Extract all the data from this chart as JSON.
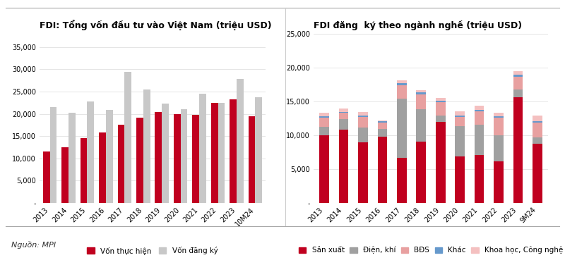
{
  "left_title": "FDI: Tổng vốn đầu tư vào Việt Nam (triệu USD)",
  "right_title": "FDI đăng  ký theo ngành nghề (triệu USD)",
  "source": "Nguồn: MPI",
  "left_years": [
    "2013",
    "2014",
    "2015",
    "2016",
    "2017",
    "2018",
    "2019",
    "2020",
    "2021",
    "2022",
    "2023",
    "10M24"
  ],
  "von_thuc_hien": [
    11500,
    12500,
    14500,
    15800,
    17500,
    19100,
    20400,
    19980,
    19740,
    22400,
    23200,
    19500
  ],
  "von_dang_ky": [
    21500,
    20200,
    22800,
    20900,
    29500,
    25400,
    22300,
    21000,
    24500,
    22400,
    27800,
    23700
  ],
  "right_years": [
    "2013",
    "2014",
    "2015",
    "2016",
    "2017",
    "2018",
    "2019",
    "2020",
    "2021",
    "2022",
    "2023",
    "9M24"
  ],
  "san_xuat": [
    10000,
    10800,
    8900,
    9800,
    6600,
    9000,
    12000,
    6900,
    7100,
    6100,
    15600,
    8700
  ],
  "dien_khi": [
    1200,
    1600,
    2200,
    1100,
    8800,
    4800,
    900,
    4400,
    4400,
    3900,
    1200,
    1000
  ],
  "bds": [
    1400,
    900,
    1600,
    1000,
    2000,
    2200,
    2000,
    1400,
    2000,
    2600,
    1800,
    2200
  ],
  "khac": [
    200,
    150,
    200,
    200,
    300,
    300,
    200,
    200,
    250,
    200,
    300,
    200
  ],
  "khoa_hoc": [
    550,
    550,
    550,
    100,
    400,
    400,
    450,
    650,
    650,
    550,
    550,
    800
  ],
  "left_color_red": "#c0001f",
  "left_color_gray": "#c8c8c8",
  "right_color_san_xuat": "#c0001f",
  "right_color_dien_khi": "#a0a0a0",
  "right_color_bds": "#e8a0a0",
  "right_color_khac": "#6699cc",
  "right_color_khoa_hoc": "#f4c0c0",
  "left_ylim": [
    0,
    38000
  ],
  "right_ylim": [
    0,
    25000
  ],
  "left_yticks": [
    0,
    5000,
    10000,
    15000,
    20000,
    25000,
    30000,
    35000
  ],
  "right_yticks": [
    0,
    5000,
    10000,
    15000,
    20000,
    25000
  ],
  "legend_left": [
    "Vốn thực hiện",
    "Vốn đăng ký"
  ],
  "legend_right": [
    "Sản xuất",
    "Điện, khí",
    "BĐS",
    "Khác",
    "Khoa học, Công nghệ"
  ],
  "fig_bg": "#ffffff",
  "title_fontsize": 9,
  "tick_fontsize": 7,
  "legend_fontsize": 7.5,
  "source_fontsize": 8
}
